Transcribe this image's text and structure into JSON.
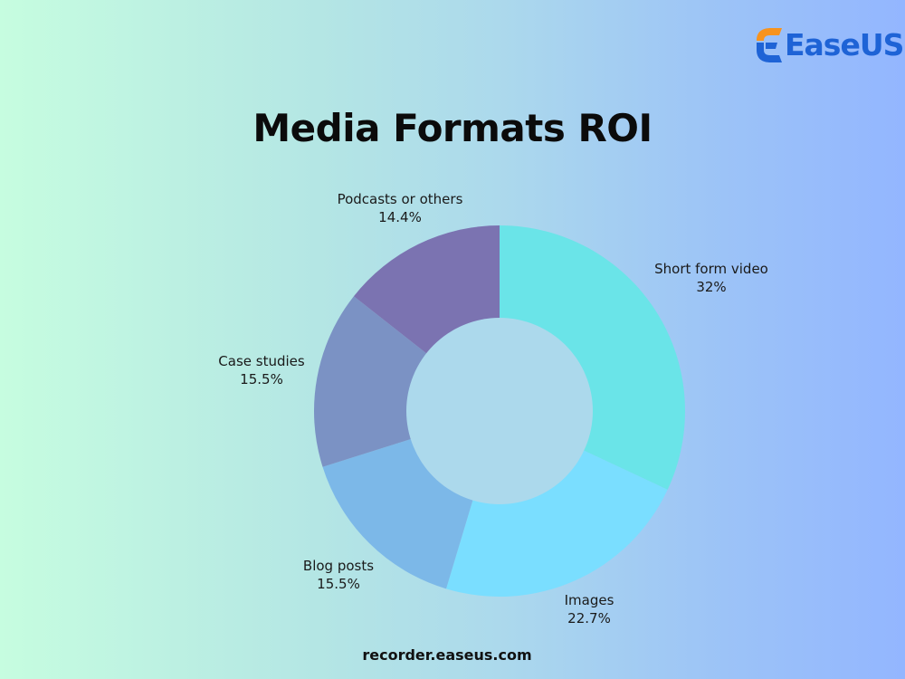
{
  "brand": {
    "name": "EaseUS",
    "colors": {
      "mark_top": "#f7931e",
      "mark_bottom": "#1e63d6",
      "text": "#1e63d6"
    }
  },
  "footer": {
    "url": "recorder.easeus.com"
  },
  "chart_data": {
    "type": "pie",
    "variant": "donut",
    "title": "Media Formats ROI",
    "start_at": "top, clockwise",
    "slices": [
      {
        "label": "Short form video",
        "value": 32,
        "value_label": "32%",
        "color": "#6ae4e8"
      },
      {
        "label": "Images",
        "value": 22.7,
        "value_label": "22.7%",
        "color": "#7adeff"
      },
      {
        "label": "Blog posts",
        "value": 15.5,
        "value_label": "15.5%",
        "color": "#7cb8e8"
      },
      {
        "label": "Case studies",
        "value": 15.5,
        "value_label": "15.5%",
        "color": "#7b92c4"
      },
      {
        "label": "Podcasts or others",
        "value": 14.4,
        "value_label": "14.4%",
        "color": "#7b73b1"
      }
    ],
    "legend": "none"
  }
}
